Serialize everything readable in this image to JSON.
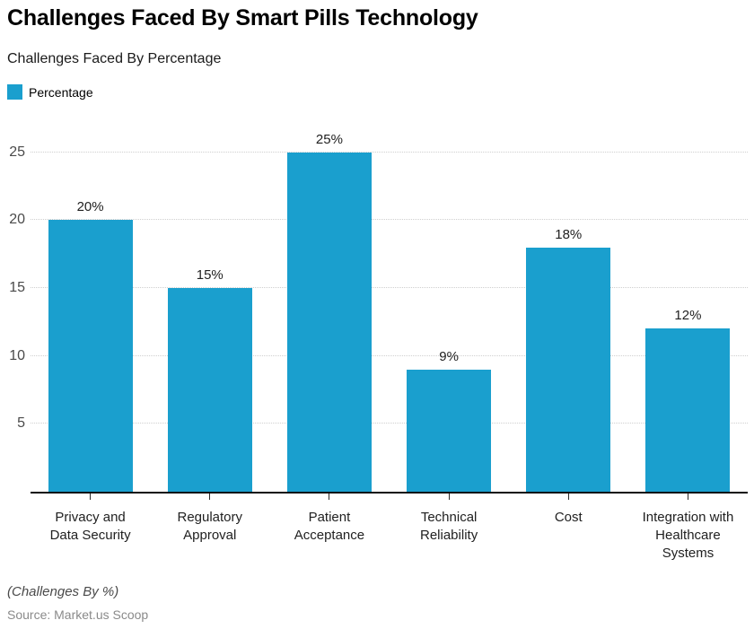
{
  "header": {
    "title": "Challenges Faced By Smart Pills Technology",
    "subtitle": "Challenges Faced By Percentage"
  },
  "legend": {
    "label": "Percentage",
    "swatch_color": "#1A9FCE"
  },
  "chart_data": {
    "type": "bar",
    "title": "Challenges Faced By Smart Pills Technology",
    "subtitle": "Challenges Faced By Percentage",
    "series_name": "Percentage",
    "categories": [
      "Privacy and Data Security",
      "Regulatory Approval",
      "Patient Acceptance",
      "Technical Reliability",
      "Cost",
      "Integration with Healthcare Systems"
    ],
    "category_lines": [
      [
        "Privacy and",
        "Data Security"
      ],
      [
        "Regulatory",
        "Approval"
      ],
      [
        "Patient",
        "Acceptance"
      ],
      [
        "Technical",
        "Reliability"
      ],
      [
        "Cost"
      ],
      [
        "Integration with",
        "Healthcare",
        "Systems"
      ]
    ],
    "values": [
      20,
      15,
      25,
      9,
      18,
      12
    ],
    "value_labels": [
      "20%",
      "15%",
      "25%",
      "9%",
      "18%",
      "12%"
    ],
    "y_ticks": [
      5,
      10,
      15,
      20,
      25
    ],
    "ylim": [
      0,
      27.5
    ],
    "xlabel": "",
    "ylabel": "",
    "grid": true,
    "gridline_color": "#cfcfcf",
    "bar_color": "#1A9FCE",
    "axis_line_color": "#0d0d0d",
    "legend_position": "top-left"
  },
  "footer": {
    "note": "(Challenges By %)",
    "source": "Source: Market.us Scoop"
  }
}
